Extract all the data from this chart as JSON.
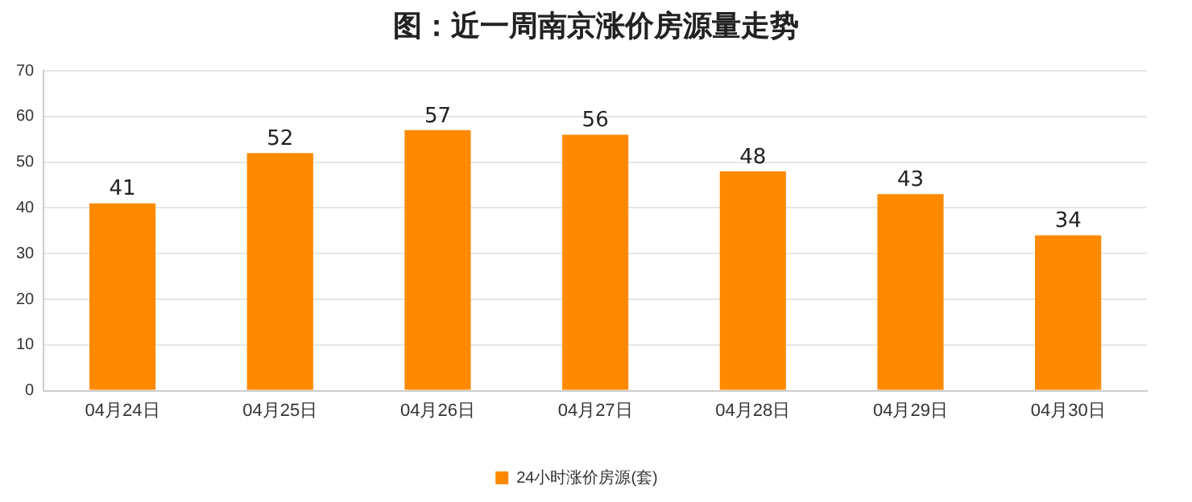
{
  "chart_data": {
    "type": "bar",
    "title": "图：近一周南京涨价房源量走势",
    "categories": [
      "04月24日",
      "04月25日",
      "04月26日",
      "04月27日",
      "04月28日",
      "04月29日",
      "04月30日"
    ],
    "series": [
      {
        "name": "24小时涨价房源(套)",
        "color": "#ff8a00",
        "values": [
          41,
          52,
          57,
          56,
          48,
          43,
          34
        ]
      }
    ],
    "ylim": [
      0,
      70
    ],
    "yticks": [
      0,
      10,
      20,
      30,
      40,
      50,
      60,
      70
    ],
    "grid": "y",
    "legend": "bottom",
    "data_labels": true
  }
}
